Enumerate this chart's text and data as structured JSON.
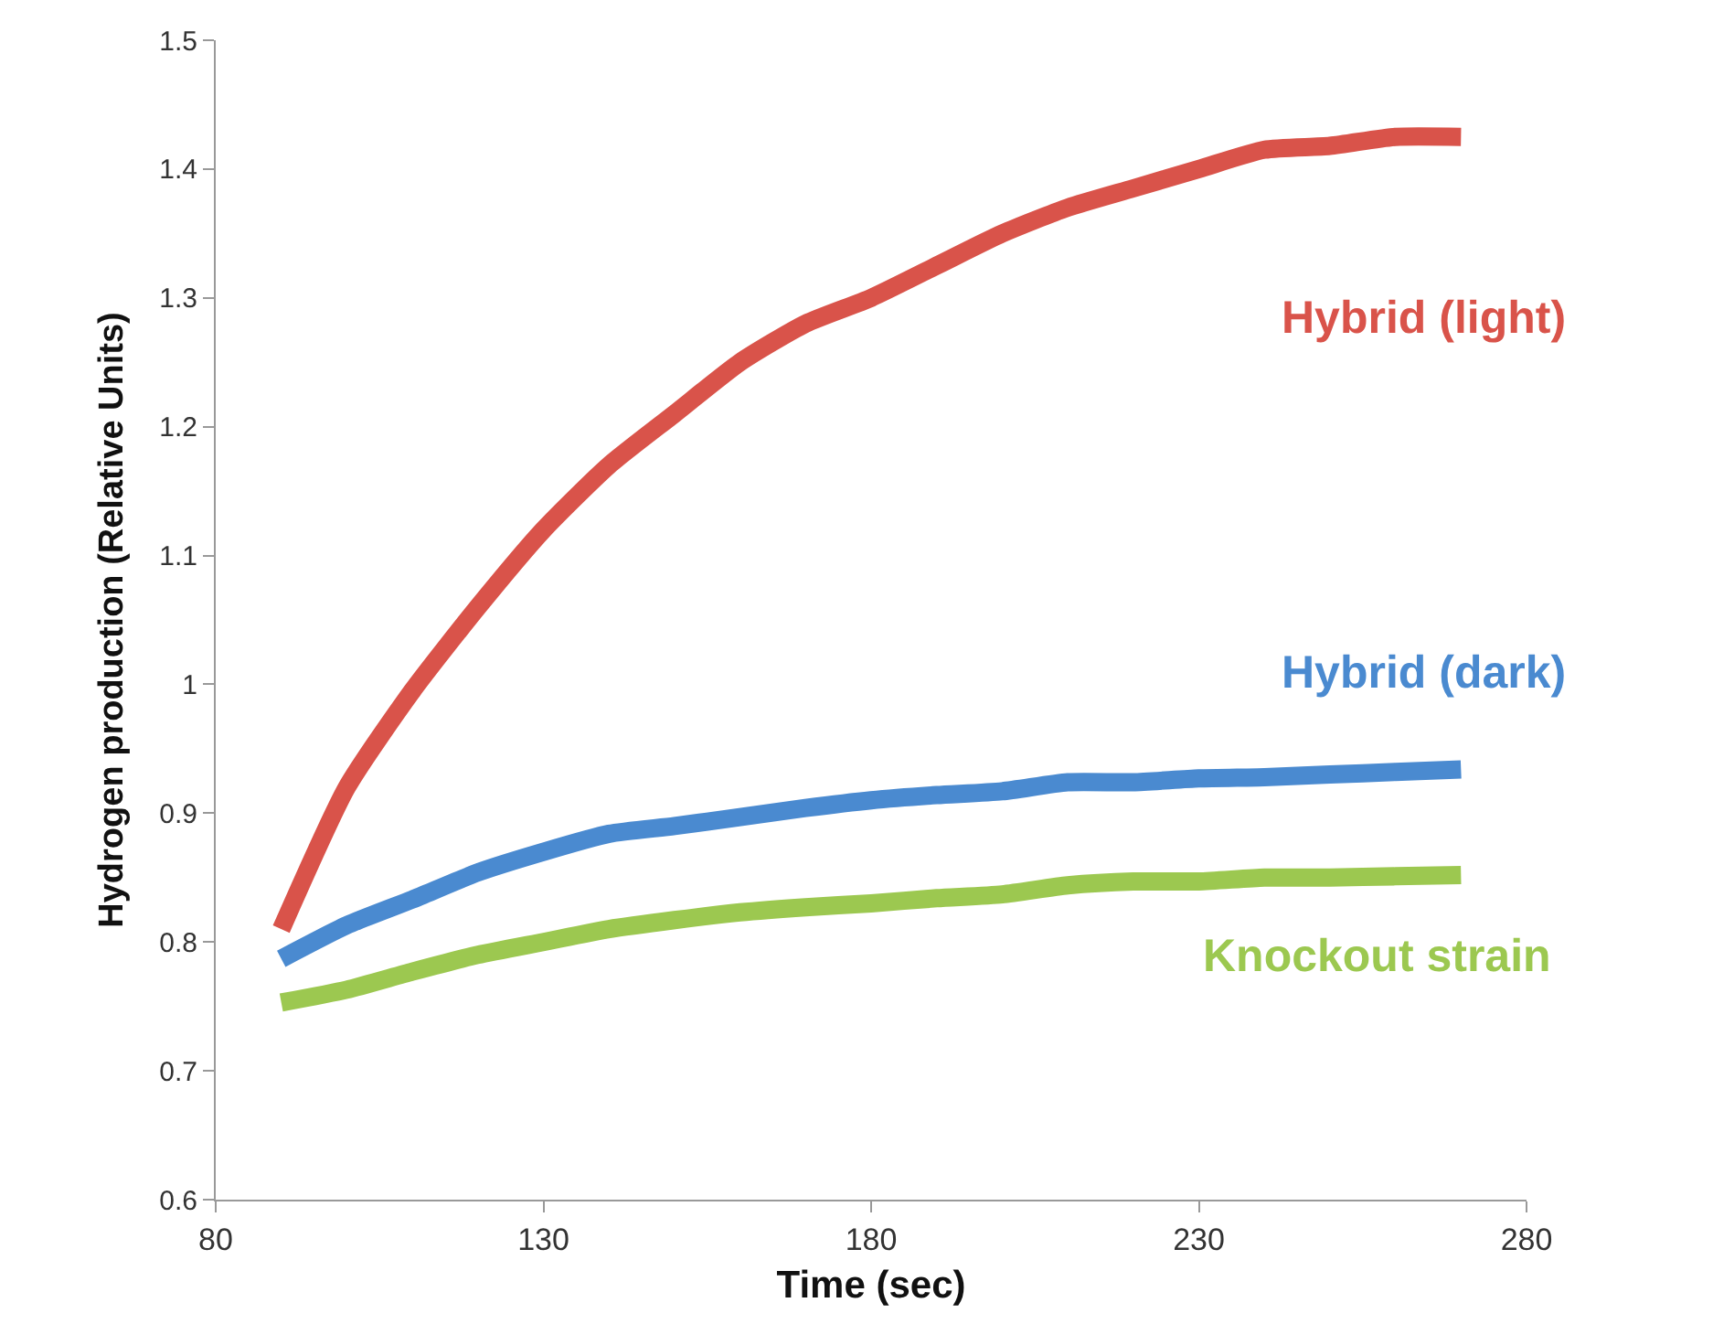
{
  "chart_data": {
    "type": "line",
    "xlabel": "Time (sec)",
    "ylabel": "Hydrogen production (Relative Units)",
    "x": [
      90,
      100,
      110,
      120,
      130,
      140,
      150,
      160,
      170,
      180,
      190,
      200,
      210,
      220,
      230,
      240,
      250,
      260,
      270
    ],
    "series": [
      {
        "name": "Hybrid (light)",
        "color": "#d9534a",
        "values": [
          0.81,
          0.92,
          0.995,
          1.06,
          1.12,
          1.17,
          1.21,
          1.25,
          1.28,
          1.3,
          1.325,
          1.35,
          1.37,
          1.385,
          1.4,
          1.415,
          1.418,
          1.425,
          1.425
        ]
      },
      {
        "name": "Hybrid (dark)",
        "color": "#4a8ad0",
        "values": [
          0.787,
          0.813,
          0.833,
          0.854,
          0.87,
          0.884,
          0.89,
          0.897,
          0.904,
          0.91,
          0.914,
          0.917,
          0.924,
          0.924,
          0.927,
          0.928,
          0.93,
          0.932,
          0.934
        ]
      },
      {
        "name": "Knockout strain",
        "color": "#9cc850",
        "values": [
          0.753,
          0.763,
          0.777,
          0.79,
          0.8,
          0.81,
          0.817,
          0.823,
          0.827,
          0.83,
          0.834,
          0.837,
          0.844,
          0.847,
          0.847,
          0.85,
          0.85,
          0.851,
          0.852
        ]
      }
    ],
    "xlim": [
      80,
      280
    ],
    "xticks": [
      80,
      130,
      180,
      230,
      280
    ],
    "ylim": [
      0.6,
      1.5
    ],
    "yticks": [
      0.6,
      0.7,
      0.8,
      0.9,
      {
        "value": 1,
        "label": "1"
      },
      1.1,
      1.2,
      1.3,
      1.4,
      1.5
    ],
    "grid": false,
    "legend": false,
    "marker": "none",
    "line_style": "solid"
  }
}
